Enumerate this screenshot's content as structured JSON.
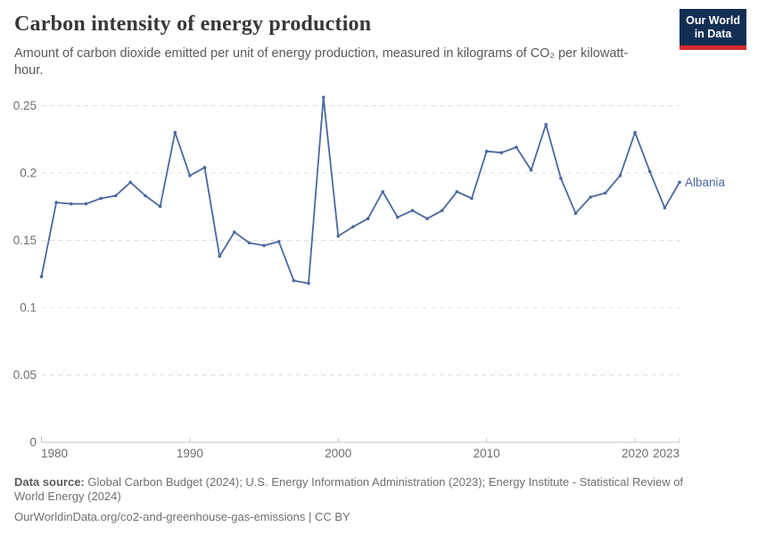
{
  "header": {
    "title": "Carbon intensity of energy production",
    "subtitle": "Amount of carbon dioxide emitted per unit of energy production, measured in kilograms of CO₂ per kilowatt-hour.",
    "logo": {
      "line1": "Our World",
      "line2": "in Data"
    }
  },
  "chart_data": {
    "type": "line",
    "title": "Carbon intensity of energy production",
    "entity": "Albania",
    "unit": "kilograms of CO₂ per kilowatt-hour",
    "x": [
      1980,
      1981,
      1982,
      1983,
      1984,
      1985,
      1986,
      1987,
      1988,
      1989,
      1990,
      1991,
      1992,
      1993,
      1994,
      1995,
      1996,
      1997,
      1998,
      1999,
      2000,
      2001,
      2002,
      2003,
      2004,
      2005,
      2006,
      2007,
      2008,
      2009,
      2010,
      2011,
      2012,
      2013,
      2014,
      2015,
      2016,
      2017,
      2018,
      2019,
      2020,
      2021,
      2022,
      2023
    ],
    "values": [
      0.123,
      0.178,
      0.177,
      0.177,
      0.181,
      0.183,
      0.193,
      0.183,
      0.175,
      0.23,
      0.198,
      0.204,
      0.138,
      0.156,
      0.148,
      0.146,
      0.149,
      0.12,
      0.118,
      0.256,
      0.153,
      0.16,
      0.166,
      0.186,
      0.167,
      0.172,
      0.166,
      0.172,
      0.186,
      0.181,
      0.216,
      0.215,
      0.219,
      0.202,
      0.236,
      0.196,
      0.17,
      0.182,
      0.185,
      0.198,
      0.23,
      0.201,
      0.174,
      0.193
    ],
    "xlim": [
      1980,
      2023
    ],
    "ylim": [
      0,
      0.25
    ],
    "y_ticks": [
      0,
      0.05,
      0.1,
      0.15,
      0.2,
      0.25
    ],
    "y_tick_labels": [
      "0",
      "0.05",
      "0.1",
      "0.15",
      "0.2",
      "0.25"
    ],
    "x_ticks": [
      1980,
      1990,
      2000,
      2010,
      2020,
      2023
    ],
    "x_tick_labels": [
      "1980",
      "1990",
      "2000",
      "2010",
      "2020",
      "2023"
    ],
    "grid": true,
    "legend_position": "right-of-last-point",
    "line_color": "#4a68a2",
    "grid_color": "#dcdcdc",
    "axis_color": "#c4c4c4",
    "tick_text_color": "#6e6e6e"
  },
  "footer": {
    "source_label": "Data source:",
    "source_text": "Global Carbon Budget (2024); U.S. Energy Information Administration (2023); Energy Institute - Statistical Review of World Energy (2024)",
    "license_line": "OurWorldinData.org/co2-and-greenhouse-gas-emissions | CC BY"
  }
}
